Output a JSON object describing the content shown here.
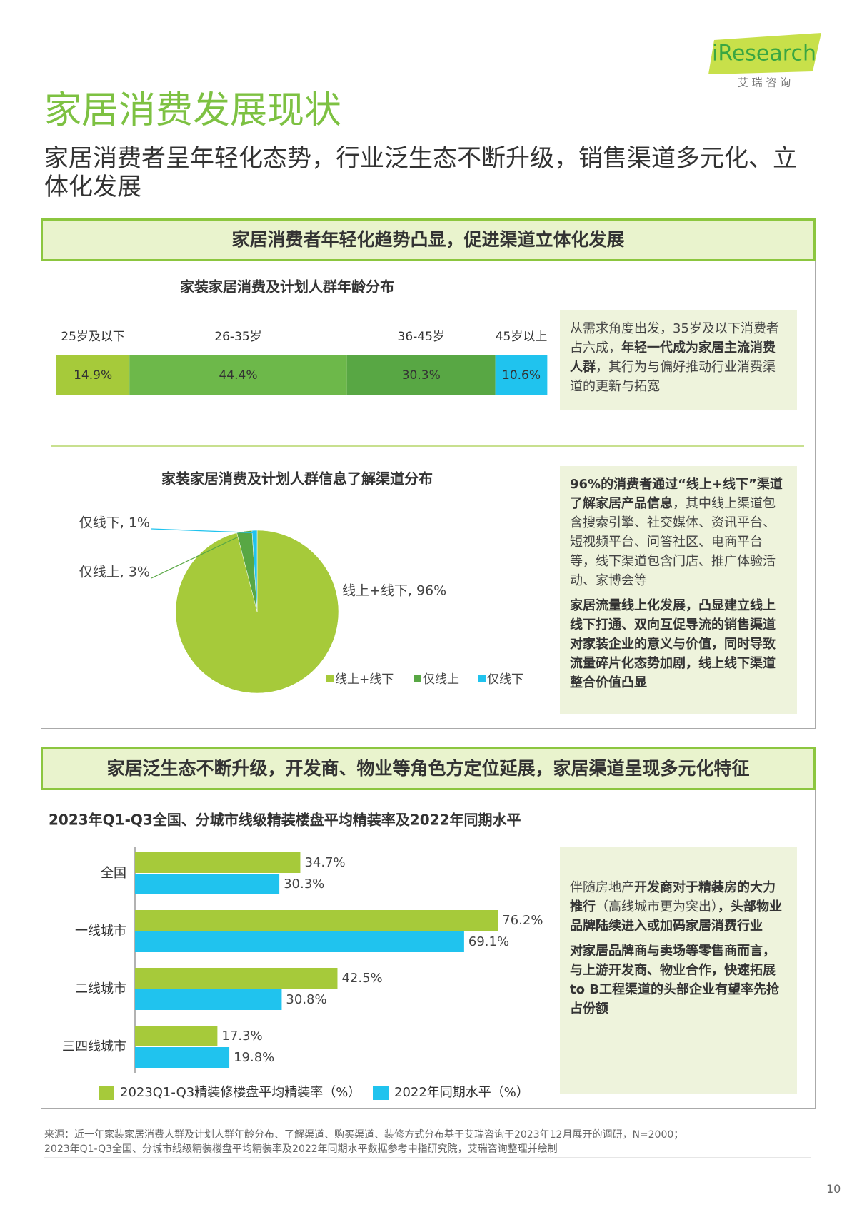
{
  "header": {
    "logo": "iResearch",
    "logo_sub": "艾 瑞 咨 询",
    "title": "家居消费发展现状",
    "subtitle": "家居消费者呈年轻化态势，行业泛生态不断升级，销售渠道多元化、立体化发展"
  },
  "sections": [
    {
      "heading": "家居消费者年轻化趋势凸显，促进渠道立体化发展",
      "notes": [
        [
          [
            {
              "text": "从需求角度出发，35岁及以下消费者占六成，"
            },
            {
              "text": "年轻一代成为家居主流消费人群",
              "bold": true
            },
            {
              "text": "，其行为与偏好推动行业消费渠道的更新与拓宽"
            }
          ]
        ],
        [
          [
            {
              "text": "96%的消费者通过“线上+线下”渠道了解家居产品信息",
              "bold": true
            },
            {
              "text": "，其中线上渠道包含搜索引擎、社交媒体、资讯平台、短视频平台、问答社区、电商平台等，线下渠道包含门店、推广体验活动、家博会等"
            }
          ],
          [
            {
              "text": "家居流量线上化发展，凸显建立线上线下打通、双向互促导流的销售渠道对家装企业的意义与价值，同时导致流量碎片化态势加剧，线上线下渠道整合价值凸显",
              "bold": true
            }
          ]
        ]
      ]
    },
    {
      "heading": "家居泛生态不断升级，开发商、物业等角色方定位延展，家居渠道呈现多元化特征",
      "notes": [
        [
          [
            {
              "text": "伴随房地产"
            },
            {
              "text": "开发商对于精装房的大力推行",
              "bold": true
            },
            {
              "text": "（高线城市更为突出）"
            },
            {
              "text": "，头部物业品牌陆续进入或加码家居消费行业",
              "bold": true
            }
          ],
          [
            {
              "text": "对家居品牌商与卖场等零售商而言，与上游开发商、物业合作，快速拓展to B工程渠道的头部企业有望率先抢占份额",
              "bold": true
            }
          ]
        ]
      ]
    }
  ],
  "chart_data": [
    {
      "type": "stacked_bar",
      "title": "家装家居消费及计划人群年龄分布",
      "categories": [
        null
      ],
      "series": [
        {
          "name": "25岁及以下",
          "color": "#a6ca3a",
          "values": [
            14.9
          ],
          "value_labels": [
            "14.9%"
          ]
        },
        {
          "name": "26-35岁",
          "color": "#6db84a",
          "values": [
            44.4
          ],
          "value_labels": [
            "44.4%"
          ]
        },
        {
          "name": "36-45岁",
          "color": "#58a744",
          "values": [
            30.3
          ],
          "value_labels": [
            "30.3%"
          ]
        },
        {
          "name": "45岁以上",
          "color": "#20c3ee",
          "values": [
            10.6
          ],
          "value_labels": [
            "10.6%"
          ]
        }
      ]
    },
    {
      "type": "pie",
      "title": "家装家居消费及计划人群信息了解渠道分布",
      "categories": [
        "线上+线下",
        "仅线上",
        "仅线下"
      ],
      "values": [
        96,
        3,
        1
      ],
      "value_labels": [
        "线上+线下, 96%",
        "仅线上, 3%",
        "仅线下, 1%"
      ],
      "colors": [
        "#a6ca3a",
        "#58a744",
        "#20c3ee"
      ]
    },
    {
      "type": "hbar",
      "title": "2023年Q1-Q3全国、分城市线级精装楼盘平均精装率及2022年同期水平",
      "categories": [
        "全国",
        "一线城市",
        "二线城市",
        "三四线城市"
      ],
      "series": [
        {
          "name": "2023Q1-Q3精装修楼盘平均精装率（%）",
          "color": "#a6ca3a",
          "values": [
            34.7,
            76.2,
            42.5,
            17.3
          ],
          "value_labels": [
            "34.7%",
            "76.2%",
            "42.5%",
            "17.3%"
          ]
        },
        {
          "name": "2022年同期水平（%）",
          "color": "#20c3ee",
          "values": [
            30.3,
            69.1,
            30.8,
            19.8
          ],
          "value_labels": [
            "30.3%",
            "69.1%",
            "30.8%",
            "19.8%"
          ]
        }
      ]
    }
  ],
  "footer": {
    "source": [
      "来源：近一年家装家居消费人群及计划人群年龄分布、了解渠道、购买渠道、装修方式分布基于艾瑞咨询于2023年12月展开的调研，N=2000；",
      "2023年Q1-Q3全国、分城市线级精装楼盘平均精装率及2022年同期水平数据参考中指研究院，艾瑞咨询整理并绘制"
    ],
    "page": "10"
  }
}
